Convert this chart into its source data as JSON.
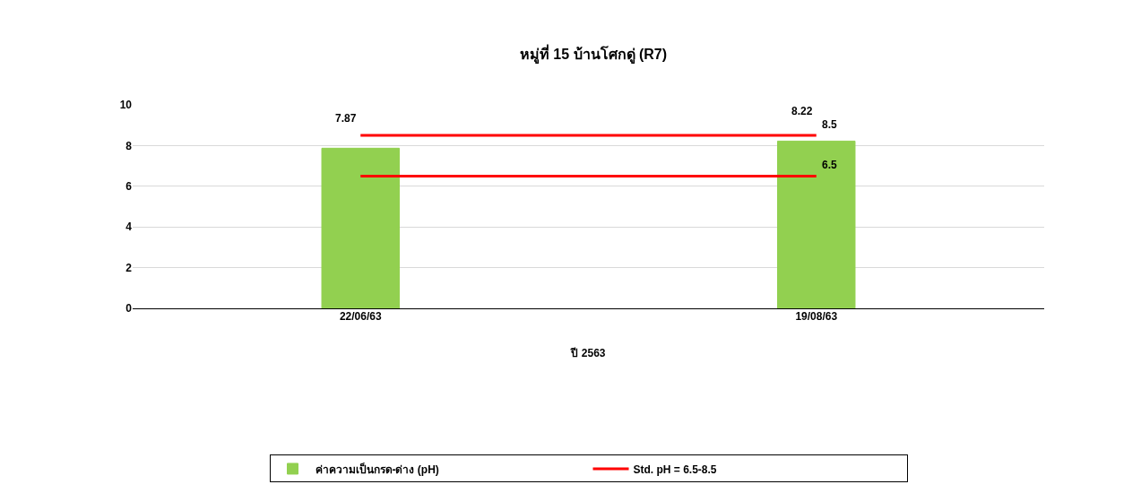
{
  "chart_data": {
    "type": "bar",
    "title": "หมู่ที่ 15 บ้านโศกดู่ (R7)",
    "xlabel": "ปี 2563",
    "categories": [
      "22/06/63",
      "19/08/63"
    ],
    "series": [
      {
        "name": "ค่าความเป็นกรด-ด่าง (pH)",
        "color": "#92d050",
        "values": [
          7.87,
          8.22
        ],
        "value_labels": [
          "7.87",
          "8.22"
        ]
      },
      {
        "name": "Std. pH = 6.5-8.5",
        "type": "line",
        "color": "#ff0000",
        "values": [
          8.5,
          8.5
        ],
        "value_labels": [
          null,
          "8.5"
        ]
      },
      {
        "type": "line",
        "color": "#ff0000",
        "values": [
          6.5,
          6.5
        ],
        "value_labels": [
          null,
          "6.5"
        ]
      }
    ],
    "ylim": [
      0,
      10
    ],
    "yticks": [
      0,
      2,
      4,
      6,
      8,
      10
    ],
    "grid": "y",
    "legend": "bottom",
    "marker": "none",
    "line_style": "solid"
  }
}
